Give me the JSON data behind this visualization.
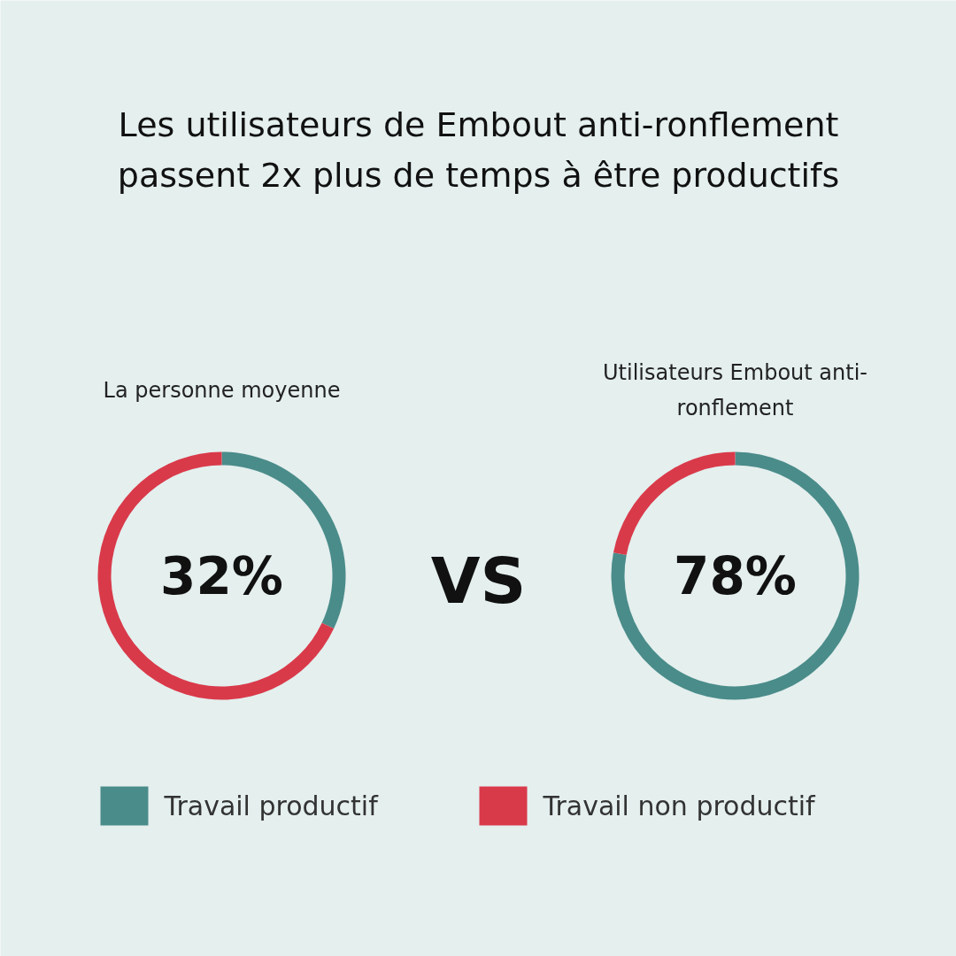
{
  "chart_data": {
    "type": "donut",
    "title": "Les utilisateurs de Embout anti-ronflement passent 2x plus de temps à être productifs",
    "categories": [
      "Travail productif",
      "Travail non productif"
    ],
    "colors": [
      "#4a8c8a",
      "#d93a4a"
    ],
    "legend": "bottom",
    "annotations": [
      "VS"
    ],
    "series": [
      {
        "name": "La personne moyenne",
        "values": [
          32,
          68
        ],
        "value_labels": [
          "32%",
          null
        ]
      },
      {
        "name": "Utilisateurs Embout anti-ronflement",
        "values": [
          78,
          22
        ],
        "value_labels": [
          "78%",
          null
        ]
      }
    ]
  }
}
